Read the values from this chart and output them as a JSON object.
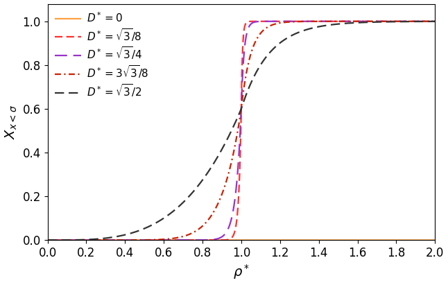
{
  "title": "",
  "xlabel": "$\\rho^*$",
  "ylabel": "$X_{x<\\sigma}$",
  "xlim": [
    0.0,
    2.0
  ],
  "ylim": [
    0.0,
    1.08
  ],
  "xticks": [
    0.0,
    0.2,
    0.4,
    0.6,
    0.8,
    1.0,
    1.2,
    1.4,
    1.6,
    1.8,
    2.0
  ],
  "yticks": [
    0.0,
    0.2,
    0.4,
    0.6,
    0.8,
    1.0
  ],
  "lines": [
    {
      "label": "$D^* = 0$",
      "color": "#FFA040",
      "linestyle": "solid",
      "lw": 1.6,
      "k": 0.0,
      "rho0": 1.0,
      "power": 999
    },
    {
      "label": "$D^* = \\sqrt{3}/8$",
      "color": "#FF3030",
      "linestyle": "dashed",
      "lw": 1.6,
      "k": 80.0,
      "rho0": 1.0,
      "power": 1
    },
    {
      "label": "$D^* = \\sqrt{3}/4$",
      "color": "#9933CC",
      "linestyle": "dashed",
      "lw": 1.6,
      "k": 35.0,
      "rho0": 1.0,
      "power": 1
    },
    {
      "label": "$D^* = 3\\sqrt{3}/8$",
      "color": "#CC2200",
      "linestyle": "dashdot",
      "lw": 1.6,
      "k": 10.0,
      "rho0": 1.0,
      "power": 1
    },
    {
      "label": "$D^* = \\sqrt{3}/2$",
      "color": "#333333",
      "linestyle": "dashed",
      "lw": 1.6,
      "k": 3.5,
      "rho0": 1.0,
      "power": 1
    }
  ],
  "legend_fontsize": 11,
  "axis_fontsize": 14,
  "tick_fontsize": 12
}
